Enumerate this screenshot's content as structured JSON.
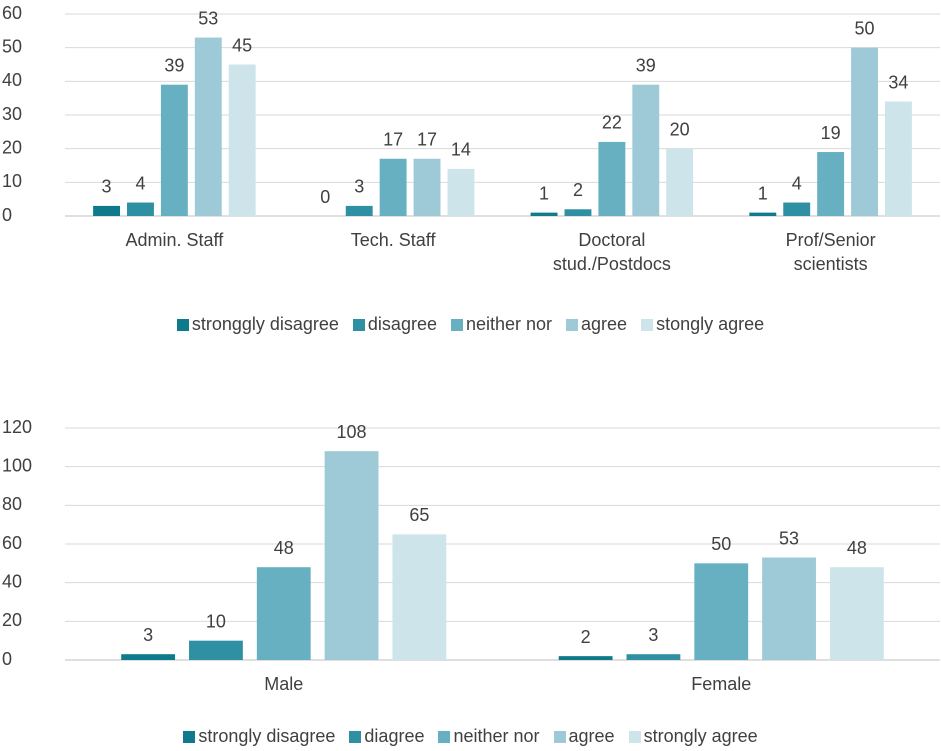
{
  "chart_data": [
    {
      "type": "bar",
      "categories": [
        "Admin. Staff",
        "Tech. Staff",
        "Doctoral stud./Postdocs",
        "Prof/Senior scientists"
      ],
      "series": [
        {
          "name": "stronggly disagree",
          "color": "#0f7a8b",
          "values": [
            3,
            0,
            1,
            1
          ]
        },
        {
          "name": "disagree",
          "color": "#2f90a4",
          "values": [
            4,
            3,
            2,
            4
          ]
        },
        {
          "name": "neither nor",
          "color": "#67b0c1",
          "values": [
            39,
            17,
            22,
            19
          ]
        },
        {
          "name": "agree",
          "color": "#9dcad6",
          "values": [
            53,
            17,
            39,
            50
          ]
        },
        {
          "name": "stongly agree",
          "color": "#cde4ea",
          "values": [
            45,
            14,
            20,
            34
          ]
        }
      ],
      "ylim": [
        0,
        60
      ],
      "yticks": [
        0,
        10,
        20,
        30,
        40,
        50,
        60
      ],
      "grid": true,
      "legend": "bottom"
    },
    {
      "type": "bar",
      "categories": [
        "Male",
        "Female"
      ],
      "series": [
        {
          "name": "strongly disagree",
          "color": "#0f7a8b",
          "values": [
            3,
            2
          ]
        },
        {
          "name": "diagree",
          "color": "#2f90a4",
          "values": [
            10,
            3
          ]
        },
        {
          "name": "neither nor",
          "color": "#67b0c1",
          "values": [
            48,
            50
          ]
        },
        {
          "name": "agree",
          "color": "#9dcad6",
          "values": [
            108,
            53
          ]
        },
        {
          "name": "strongly agree",
          "color": "#cde4ea",
          "values": [
            65,
            48
          ]
        }
      ],
      "ylim": [
        0,
        120
      ],
      "yticks": [
        0,
        20,
        40,
        60,
        80,
        100,
        120
      ],
      "grid": true,
      "legend": "bottom"
    }
  ]
}
